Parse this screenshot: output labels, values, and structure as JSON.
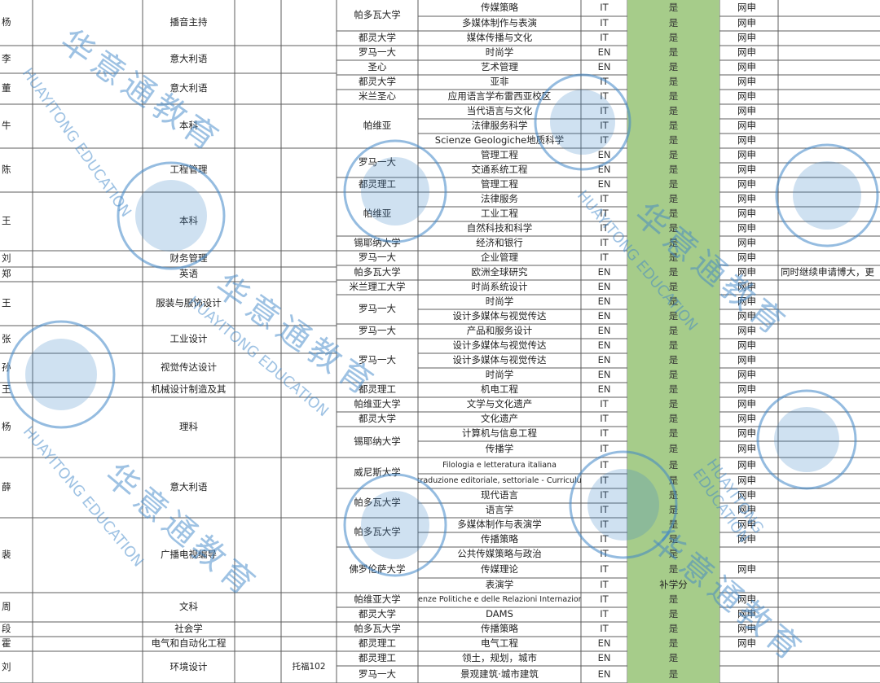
{
  "colors": {
    "grid": "#5c5c5c",
    "highlight": "#a6cc8a",
    "watermark": "#3f86c8"
  },
  "left_rows": [
    {
      "name": "杨",
      "major": "播音主持"
    },
    {
      "name": "李",
      "major": "意大利语"
    },
    {
      "name": "董",
      "major": "意大利语"
    },
    {
      "name": "牛",
      "major": "本科"
    },
    {
      "name": "陈",
      "major": "工程管理"
    },
    {
      "name": "王",
      "major": "本科"
    },
    {
      "name": "刘",
      "major": "财务管理"
    },
    {
      "name": "郑",
      "major": "英语"
    },
    {
      "name": "王",
      "major": "服装与服饰设计"
    },
    {
      "name": "张",
      "major": "工业设计"
    },
    {
      "name": "孙",
      "major": "视觉传达设计"
    },
    {
      "name": "王",
      "major": "机械设计制造及其"
    },
    {
      "name": "杨",
      "major": "理科"
    },
    {
      "name": "薛",
      "major": "意大利语"
    },
    {
      "name": "裴",
      "major": "广播电视编导"
    },
    {
      "name": "周",
      "major": "文科"
    },
    {
      "name": "段",
      "major": "社会学"
    },
    {
      "name": "霍",
      "major": "电气和自动化工程"
    },
    {
      "name": "刘",
      "major": "环境设计"
    }
  ],
  "score_fragment": "托福102",
  "schools": [
    "帕多瓦大学",
    "都灵大学",
    "罗马一大",
    "圣心",
    "都灵大学",
    "米兰圣心",
    "帕维亚",
    "罗马一大",
    "都灵理工",
    "帕维亚",
    "锡耶纳大学",
    "罗马一大",
    "帕多瓦大学",
    "米兰理工大学",
    "罗马一大",
    "罗马一大",
    "罗马一大",
    "都灵理工",
    "帕维亚大学",
    "都灵大学",
    "锡耶纳大学",
    "威尼斯大学",
    "帕多瓦大学",
    "帕多瓦大学",
    "佛罗伦萨大学",
    "帕维亚大学",
    "都灵大学",
    "帕多瓦大学",
    "都灵理工",
    "都灵理工",
    "罗马一大"
  ],
  "programs": [
    "传媒策略",
    "多媒体制作与表演",
    "媒体传播与文化",
    "时尚学",
    "艺术管理",
    "亚非",
    "应用语言学布雷西亚校区",
    "当代语言与文化",
    "法律服务科学",
    "Scienze Geologiche地质科学",
    "管理工程",
    "交通系统工程",
    "管理工程",
    "法律服务",
    "工业工程",
    "自然科技和科学",
    "经济和银行",
    "企业管理",
    "欧洲全球研究",
    "时尚系统设计",
    "时尚学",
    "设计多媒体与视觉传达",
    "产品和服务设计",
    "设计多媒体与视觉传达",
    "设计多媒体与视觉传达",
    "时尚学",
    "机电工程",
    "文学与文化遗产",
    "文化遗产",
    "计算机与信息工程",
    "传播学",
    "Filologia e letteratura italiana",
    "Interpretariato e traduzione editoriale, settoriale - Curriculum Cinese-Inglese",
    "现代语言",
    "语言学",
    "多媒体制作与表演学",
    "传播策略",
    "公共传媒策略与政治",
    "传媒理论",
    "表演学",
    "Scienze Politiche e delle Relazioni Internazionali",
    "DAMS",
    "传播策略",
    "电气工程",
    "领土，规划，城市",
    "景观建筑·城市建筑"
  ],
  "langs": [
    "IT",
    "IT",
    "IT",
    "EN",
    "EN",
    "IT",
    "IT",
    "IT",
    "IT",
    "IT",
    "EN",
    "EN",
    "EN",
    "IT",
    "IT",
    "IT",
    "IT",
    "IT",
    "EN",
    "EN",
    "EN",
    "EN",
    "EN",
    "EN",
    "EN",
    "EN",
    "EN",
    "IT",
    "IT",
    "IT",
    "IT",
    "IT",
    "IT",
    "IT",
    "IT",
    "IT",
    "IT",
    "IT",
    "IT",
    "IT",
    "IT",
    "IT",
    "IT",
    "EN",
    "EN",
    "EN"
  ],
  "result_yes": "是",
  "result_note": "补学分",
  "apply_type": "网申",
  "remark": "同时继续申请博大，更",
  "watermark": {
    "cn": "华意通教育",
    "en": "HUAYITONG EDUCATION"
  }
}
